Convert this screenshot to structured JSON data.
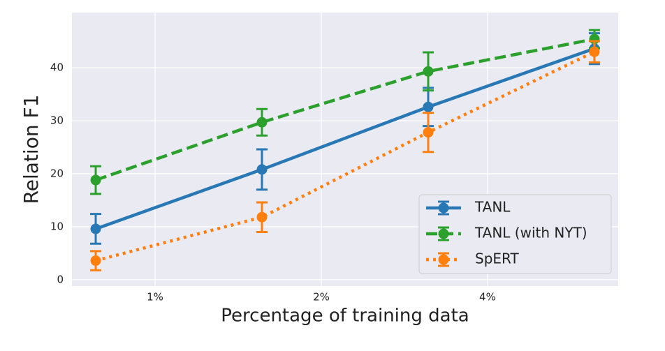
{
  "chart_data": {
    "type": "line",
    "xlabel": "Percentage of training data",
    "ylabel": "Relation F1",
    "x": [
      0,
      1,
      2,
      3
    ],
    "xlim": [
      -0.143,
      3.143
    ],
    "xticks": [
      {
        "value": 0.357,
        "label": "1%"
      },
      {
        "value": 1.357,
        "label": "2%"
      },
      {
        "value": 2.357,
        "label": "4%"
      }
    ],
    "ylim": [
      -1.2,
      50.4
    ],
    "yticks": [
      0,
      10,
      20,
      30,
      40
    ],
    "grid": true,
    "legend": "lower right",
    "series": [
      {
        "name": "TANL",
        "color": "#2878b5",
        "linestyle": "solid",
        "values": [
          9.6,
          20.8,
          32.6,
          43.6
        ],
        "errors": [
          2.8,
          3.8,
          3.6,
          2.9
        ]
      },
      {
        "name": "TANL (with NYT)",
        "color": "#2ca02c",
        "linestyle": "dashed",
        "values": [
          18.8,
          29.7,
          39.3,
          45.4
        ],
        "errors": [
          2.6,
          2.5,
          3.6,
          1.7
        ]
      },
      {
        "name": "SpERT",
        "color": "#ff7f0e",
        "linestyle": "dotted",
        "values": [
          3.6,
          11.8,
          27.8,
          43.0
        ],
        "errors": [
          1.8,
          2.8,
          3.7,
          2.0
        ]
      }
    ]
  }
}
